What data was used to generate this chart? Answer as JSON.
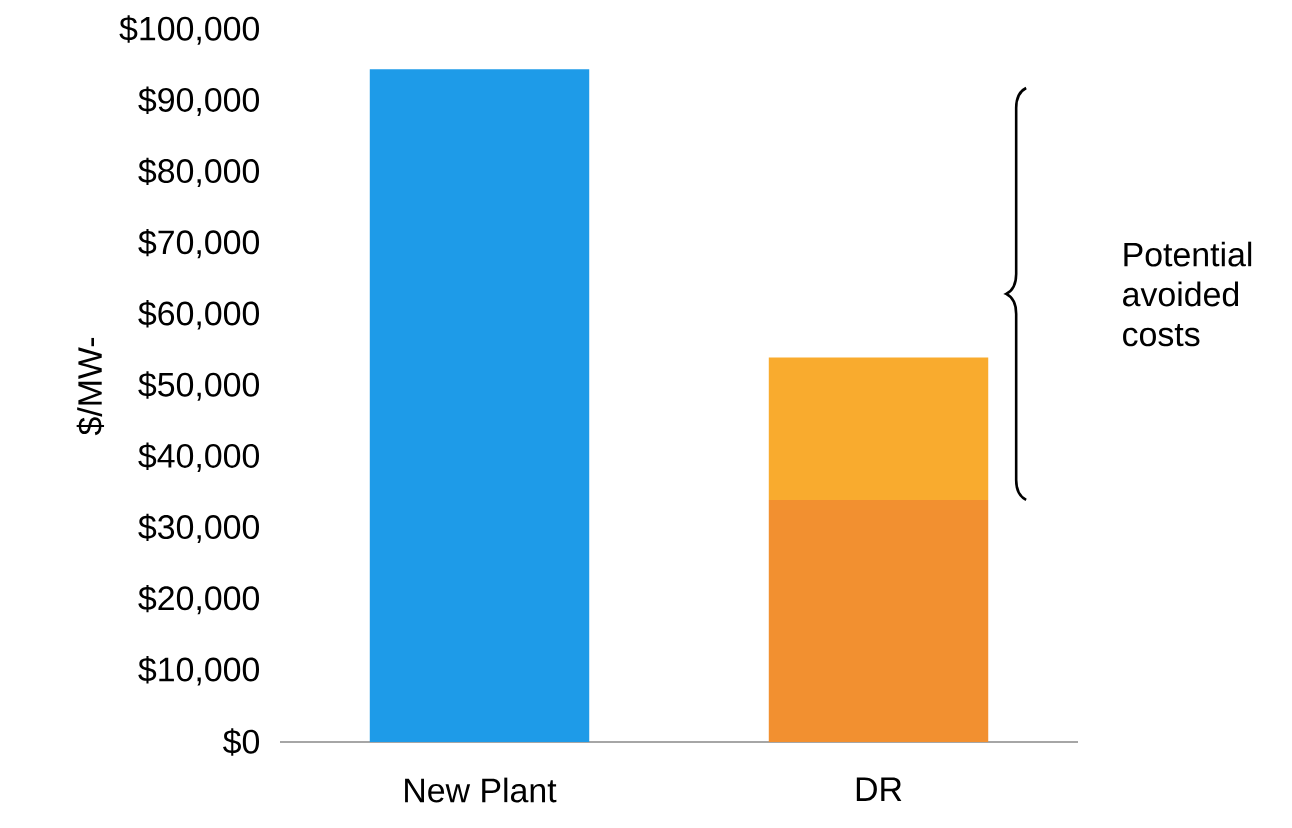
{
  "chart_data": {
    "type": "bar",
    "ylabel": "$/MW-",
    "categories": [
      "New Plant",
      "DR"
    ],
    "stacked": true,
    "ylim": [
      0,
      100000
    ],
    "yticks": [
      {
        "value": 0,
        "label": "$0"
      },
      {
        "value": 10000,
        "label": "$10,000"
      },
      {
        "value": 20000,
        "label": "$20,000"
      },
      {
        "value": 30000,
        "label": "$30,000"
      },
      {
        "value": 40000,
        "label": "$40,000"
      },
      {
        "value": 50000,
        "label": "$50,000"
      },
      {
        "value": 60000,
        "label": "$60,000"
      },
      {
        "value": 70000,
        "label": "$70,000"
      },
      {
        "value": 80000,
        "label": "$80,000"
      },
      {
        "value": 90000,
        "label": "$90,000"
      },
      {
        "value": 100000,
        "label": "$100,000"
      }
    ],
    "series": [
      {
        "colors": [
          "#1e9be8",
          "#f29030"
        ],
        "values": [
          94500,
          34000
        ]
      },
      {
        "color": "#f9ab2e",
        "values": [
          null,
          20000
        ]
      }
    ],
    "annotations": [
      "Potential avoided costs"
    ]
  }
}
